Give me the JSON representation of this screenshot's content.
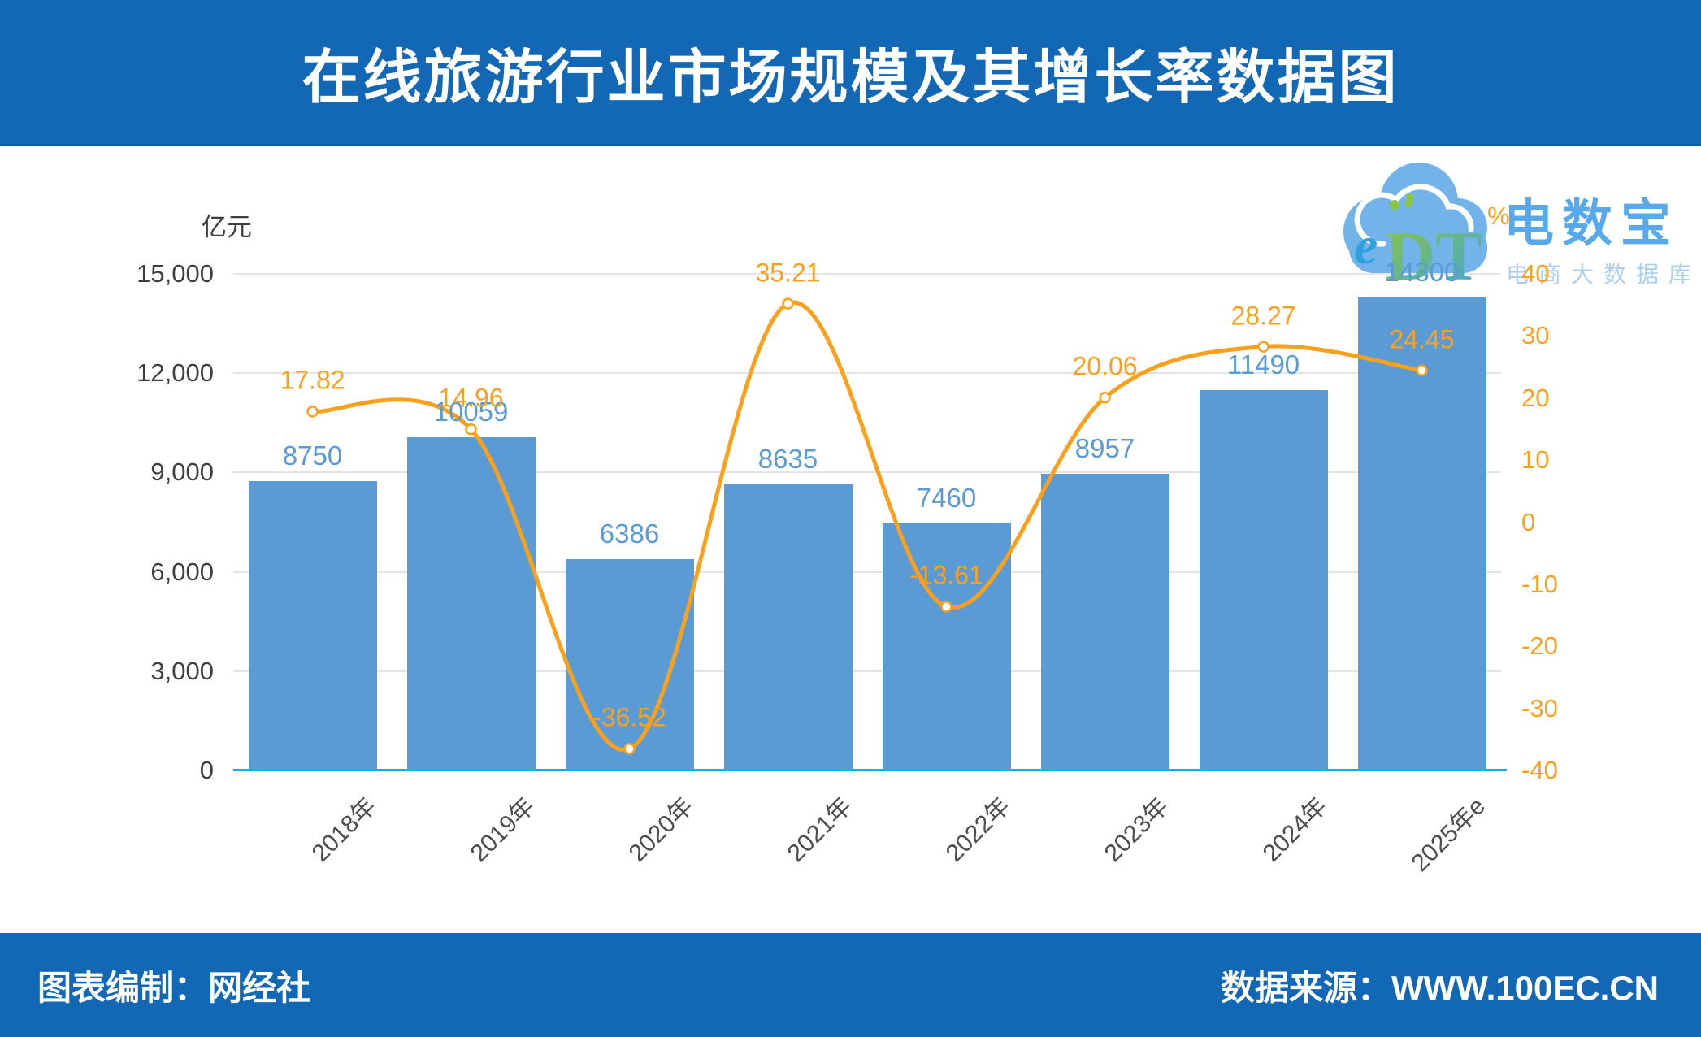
{
  "title": "在线旅游行业市场规模及其增长率数据图",
  "axes": {
    "left_title": "亿元",
    "right_title": "%",
    "left_ticks": [
      "15,000",
      "12,000",
      "9,000",
      "6,000",
      "3,000",
      "0"
    ],
    "right_ticks": [
      "40",
      "30",
      "20",
      "10",
      "0",
      "-10",
      "-20",
      "-30",
      "-40"
    ]
  },
  "logo": {
    "cloud_e": "e",
    "cloud_dt": "DT",
    "brand": "电数宝",
    "tagline": "电商大数据库"
  },
  "footer": {
    "left": "图表编制：网经社",
    "right": "数据来源：WWW.100EC.CN"
  },
  "colors": {
    "banner": "#1268B5",
    "bar": "#5B9BD5",
    "line": "#F9A11D",
    "baseline": "#00B1F1",
    "grid": "#E4E4E4",
    "axis_text": "#3F3F3F",
    "xlabel_text": "#4D4D4D"
  },
  "chart_data": {
    "type": "combo",
    "categories": [
      "2018年",
      "2019年",
      "2020年",
      "2021年",
      "2022年",
      "2023年",
      "2024年",
      "2025年e"
    ],
    "series": [
      {
        "name": "亿元",
        "type": "bar",
        "axis": "left",
        "values": [
          8750,
          10059,
          6386,
          8635,
          7460,
          8957,
          11490,
          14300
        ]
      },
      {
        "name": "%",
        "type": "line",
        "axis": "right",
        "values": [
          17.82,
          14.96,
          -36.52,
          35.21,
          -13.61,
          20.06,
          28.27,
          24.45
        ]
      }
    ],
    "left_axis": {
      "title": "亿元",
      "min": 0,
      "max": 15000,
      "step": 3000
    },
    "right_axis": {
      "title": "%",
      "min": -40,
      "max": 40,
      "step": 10
    },
    "grid": true,
    "legend": "none",
    "data_labels": true
  }
}
